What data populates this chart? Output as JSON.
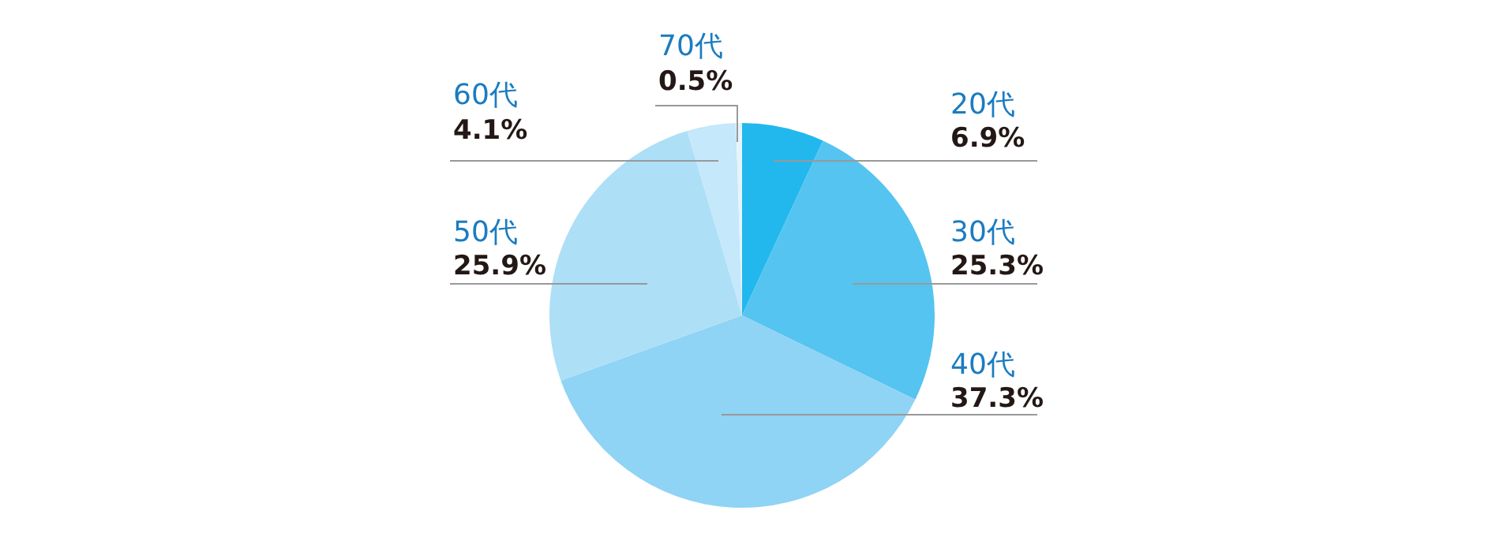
{
  "chart_data": {
    "type": "pie",
    "categories": [
      "20代",
      "30代",
      "40代",
      "50代",
      "60代",
      "70代"
    ],
    "values": [
      6.9,
      25.3,
      37.3,
      25.9,
      4.1,
      0.5
    ],
    "value_labels": [
      "6.9%",
      "25.3%",
      "37.3%",
      "25.9%",
      "4.1%",
      "0.5%"
    ],
    "colors": [
      "#22b8ee",
      "#55c4f0",
      "#8fd3f5",
      "#addff7",
      "#c5e8fa",
      "#e6f5fd"
    ],
    "legend": false
  }
}
